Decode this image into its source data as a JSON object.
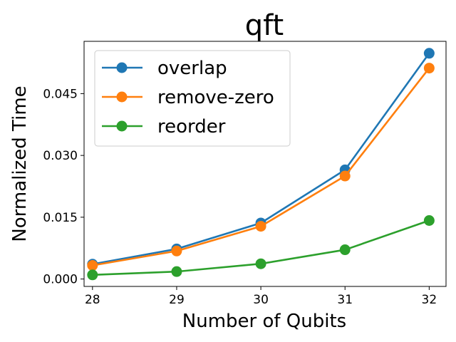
{
  "chart_data": {
    "type": "line",
    "title": "qft",
    "xlabel": "Number of Qubits",
    "ylabel": "Normalized Time",
    "x": [
      28,
      29,
      30,
      31,
      32
    ],
    "xlim": [
      27.9,
      32.2
    ],
    "ylim": [
      -0.0018,
      0.0577
    ],
    "yticks": [
      0.0,
      0.015,
      0.03,
      0.045
    ],
    "ytick_labels": [
      "0.000",
      "0.015",
      "0.030",
      "0.045"
    ],
    "xtick_labels": [
      "28",
      "29",
      "30",
      "31",
      "32"
    ],
    "grid": false,
    "legend_position": "upper-left",
    "series": [
      {
        "name": "overlap",
        "color": "#1f77b4",
        "values": [
          0.0036,
          0.0073,
          0.0136,
          0.0265,
          0.0548
        ]
      },
      {
        "name": "remove-zero",
        "color": "#ff7f0e",
        "values": [
          0.0033,
          0.0068,
          0.0128,
          0.025,
          0.0512
        ]
      },
      {
        "name": "reorder",
        "color": "#2ca02c",
        "values": [
          0.001,
          0.0018,
          0.0037,
          0.0071,
          0.0142
        ]
      }
    ]
  }
}
